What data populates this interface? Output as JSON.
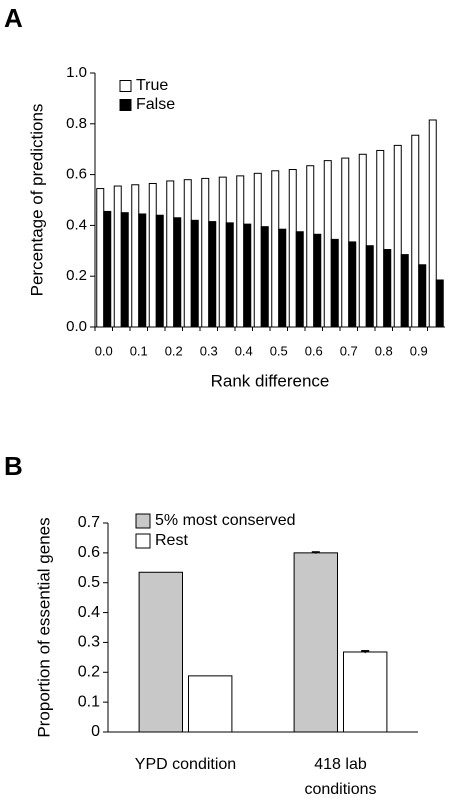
{
  "chart_data": [
    {
      "type": "bar",
      "label": "A",
      "ylabel": "Percentage of predictions",
      "xlabel": "Rank difference",
      "categories": [
        "0.0",
        null,
        "0.1",
        null,
        "0.2",
        null,
        "0.3",
        null,
        "0.4",
        null,
        "0.5",
        null,
        "0.6",
        null,
        "0.7",
        null,
        "0.8",
        null,
        "0.9",
        null
      ],
      "series": [
        {
          "name": "True",
          "color": "#ffffff",
          "values": [
            0.545,
            0.555,
            0.56,
            0.565,
            0.575,
            0.58,
            0.585,
            0.59,
            0.595,
            0.605,
            0.615,
            0.62,
            0.635,
            0.655,
            0.665,
            0.68,
            0.695,
            0.715,
            0.755,
            0.815
          ]
        },
        {
          "name": "False",
          "color": "#000000",
          "values": [
            0.455,
            0.45,
            0.445,
            0.44,
            0.43,
            0.42,
            0.415,
            0.41,
            0.405,
            0.395,
            0.385,
            0.375,
            0.365,
            0.345,
            0.335,
            0.32,
            0.305,
            0.285,
            0.245,
            0.185
          ]
        }
      ],
      "ylim": [
        0,
        1
      ],
      "yticks": [
        {
          "value": 0,
          "label": "0.0"
        },
        0.2,
        0.4,
        0.6,
        0.8,
        {
          "value": 1,
          "label": "1.0"
        }
      ],
      "grid": false,
      "legend": "top-left"
    },
    {
      "type": "bar",
      "label": "B",
      "ylabel": "Proportion of essential genes",
      "categories": [
        "YPD condition",
        "418 lab conditions"
      ],
      "series": [
        {
          "name": "5% most conserved",
          "color": "#c8c8c8",
          "values": [
            0.535,
            0.6
          ],
          "errors": [
            null,
            0.003
          ]
        },
        {
          "name": "Rest",
          "color": "#ffffff",
          "values": [
            0.188,
            0.268
          ],
          "errors": [
            null,
            0.004
          ]
        }
      ],
      "ylim": [
        0,
        0.7
      ],
      "yticks": [
        0,
        0.1,
        0.2,
        0.3,
        0.4,
        0.5,
        0.6,
        0.7
      ],
      "grid": false,
      "legend": "top-left"
    }
  ]
}
